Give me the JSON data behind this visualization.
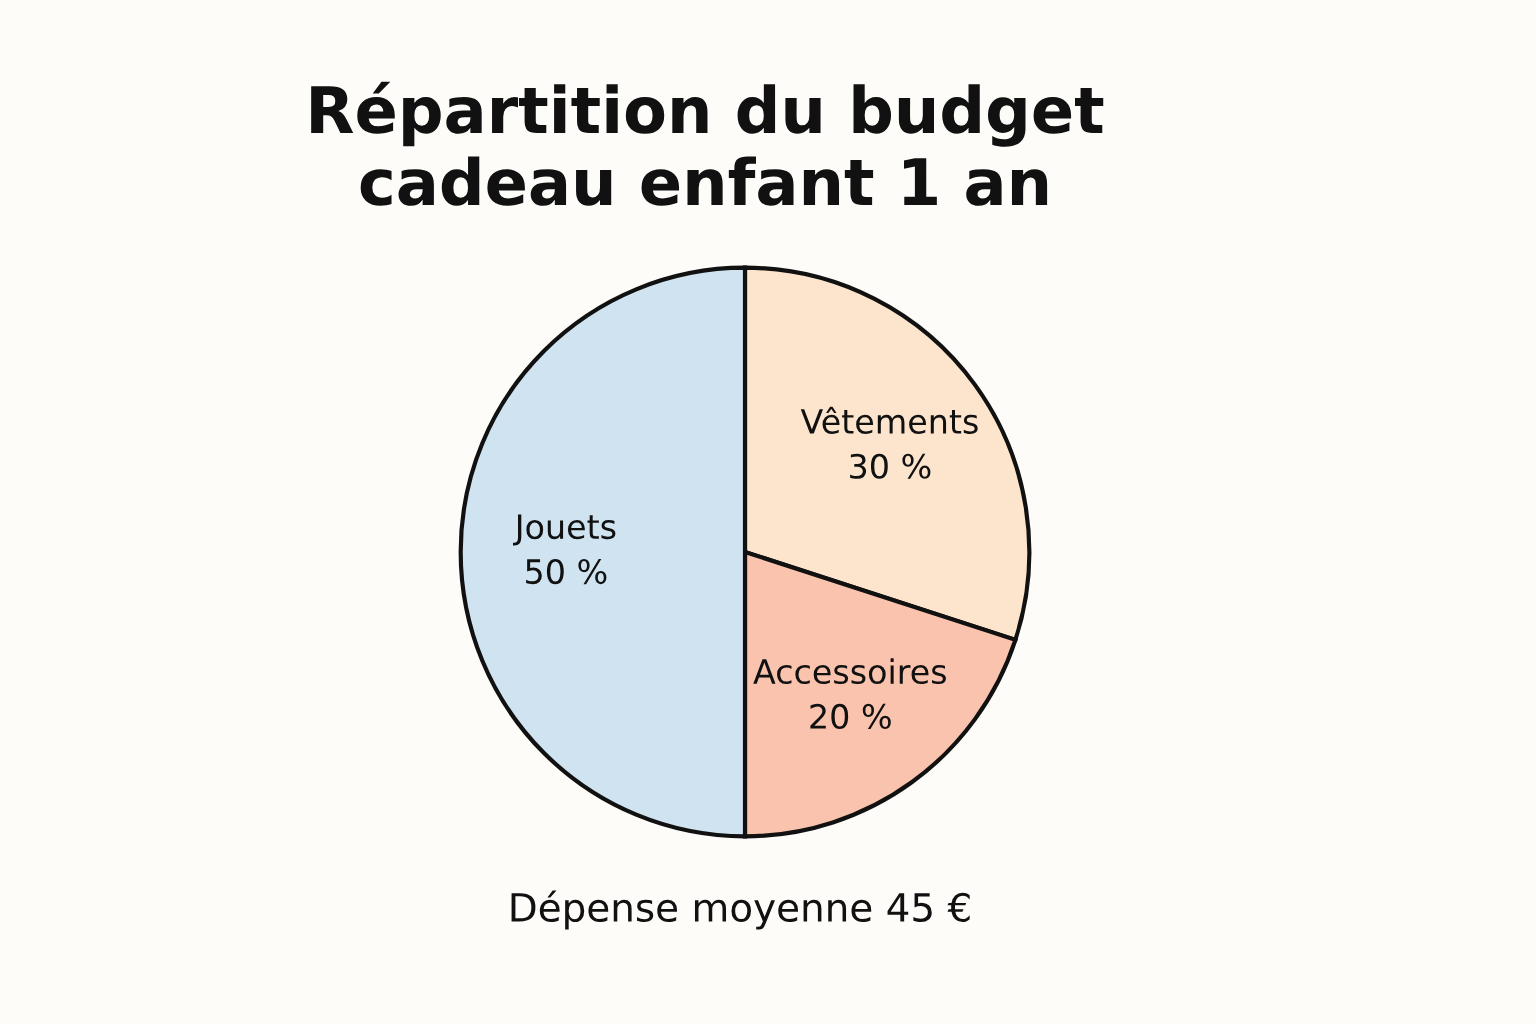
{
  "chart_data": {
    "type": "pie",
    "title": "Répartition du budget\ncadeau enfant 1 an",
    "categories": [
      "Vêtements",
      "Accessoires",
      "Jouets"
    ],
    "values": [
      30,
      20,
      50
    ],
    "value_labels": [
      "30 %",
      "20 %",
      "50 %"
    ],
    "colors": [
      "#fce5cc",
      "#f9c3ae",
      "#cfe3f0"
    ],
    "annotations": [
      "Dépense moyenne 45 €"
    ]
  }
}
